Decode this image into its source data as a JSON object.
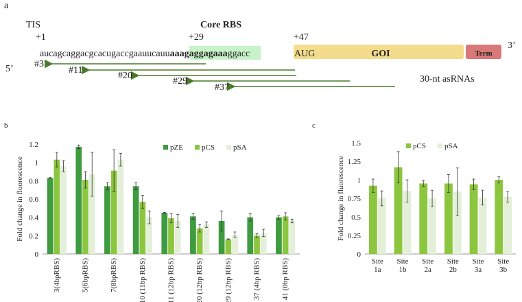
{
  "diagram": {
    "panel": "a",
    "tis": "TIS",
    "pos1": "+1",
    "core": "Core RBS",
    "pos29": "+29",
    "pos47": "+47",
    "end5": "5’",
    "end3": "3’",
    "seq1": "aucagcaggacgcacugaccgaauucauu",
    "seq_rbs": "aaagaggagaaa",
    "seq2": "ggacc",
    "start": "AUG",
    "goi": "GOI",
    "term": "Term",
    "asrnas": [
      "#3",
      "#11",
      "#20",
      "#29",
      "#37"
    ],
    "asrna_note": "30-nt asRNAs"
  },
  "chart_data": [
    {
      "label": "b",
      "type": "bar",
      "ylabel": "Fold change in fluorescence",
      "categories": [
        "3(4bpRBS)",
        "5(6bpRBS)",
        "7(8bpRBS)",
        "10 (11bp RBS)",
        "11 (12bp RBS)",
        "20 (12bp RBS)",
        "29 (12bp RBS)",
        "37 (4bp RBS)",
        "41 (0bp RBS)"
      ],
      "ylim": [
        0,
        1.2
      ],
      "yticks": [
        0,
        0.2,
        0.4,
        0.6,
        0.8,
        1,
        1.2
      ],
      "legend": "top",
      "series": [
        {
          "name": "pZE",
          "color": "#3f9b3f",
          "values": [
            0.83,
            1.17,
            0.74,
            0.74,
            0.45,
            0.41,
            0.36,
            0.4,
            0.4
          ],
          "errors": [
            0.005,
            0.02,
            0.04,
            0.04,
            0.005,
            0.03,
            0.11,
            0.04,
            0.02
          ]
        },
        {
          "name": "pCS",
          "color": "#8cc63f",
          "values": [
            1.03,
            0.81,
            0.91,
            0.57,
            0.39,
            0.28,
            0.16,
            0.2,
            0.41
          ],
          "errors": [
            0.08,
            0.09,
            0.23,
            0.07,
            0.05,
            0.04,
            0.005,
            0.02,
            0.04
          ]
        },
        {
          "name": "pSA",
          "color": "#e3efd8",
          "values": [
            0.96,
            0.87,
            1.03,
            0.4,
            0.36,
            0.32,
            0.21,
            0.23,
            0.36
          ],
          "errors": [
            0.06,
            0.24,
            0.07,
            0.07,
            0.07,
            0.03,
            0.03,
            0.04,
            0.02
          ]
        }
      ]
    },
    {
      "label": "c",
      "type": "bar",
      "ylabel": "Fold change in fluorescence",
      "categories": [
        "Site 1a",
        "Site 1b",
        "Site 2a",
        "Site 2b",
        "Site 3a",
        "Site 3b"
      ],
      "ylim": [
        0,
        1.5
      ],
      "yticks": [
        0,
        0.25,
        0.5,
        0.75,
        1,
        1.25,
        1.5
      ],
      "legend": "top",
      "series": [
        {
          "name": "pCS",
          "color": "#8cc63f",
          "values": [
            0.92,
            1.17,
            0.95,
            0.95,
            0.94,
            1.0
          ],
          "errors": [
            0.09,
            0.21,
            0.04,
            0.12,
            0.07,
            0.04
          ]
        },
        {
          "name": "pSA",
          "color": "#e3efd8",
          "values": [
            0.75,
            0.85,
            0.75,
            0.84,
            0.76,
            0.77
          ],
          "errors": [
            0.1,
            0.15,
            0.11,
            0.32,
            0.1,
            0.07
          ]
        }
      ]
    }
  ]
}
